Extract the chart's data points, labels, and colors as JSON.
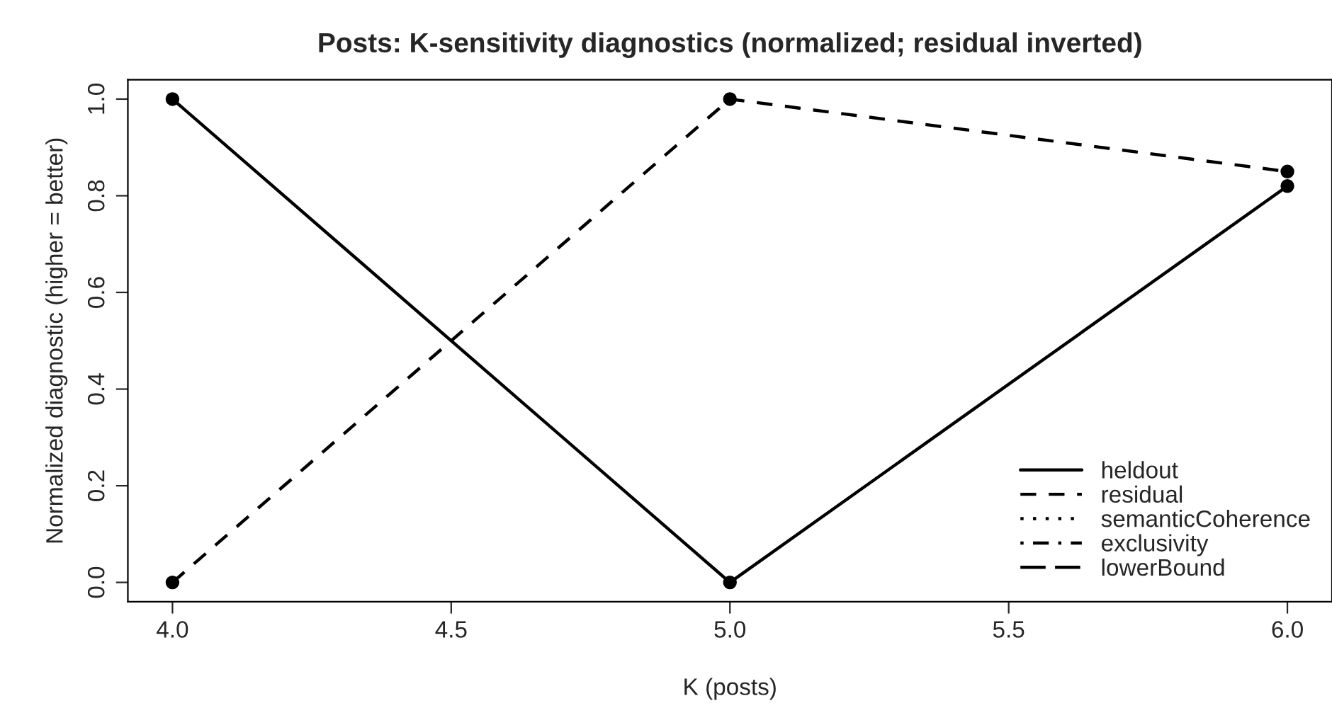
{
  "chart_data": {
    "type": "line",
    "title": "Posts: K-sensitivity diagnostics (normalized; residual inverted)",
    "xlabel": "K (posts)",
    "ylabel": "Normalized diagnostic (higher = better)",
    "x": [
      4,
      5,
      6
    ],
    "series": [
      {
        "name": "heldout",
        "color": "#000000",
        "line_style": "solid",
        "marker": "circle",
        "values": [
          1.0,
          0.0,
          0.82
        ]
      },
      {
        "name": "residual",
        "color": "#000000",
        "line_style": "dashed",
        "marker": "circle",
        "values": [
          0.0,
          1.0,
          0.85
        ]
      },
      {
        "name": "semanticCoherence",
        "color": "#000000",
        "line_style": "dotted",
        "marker": "circle",
        "values": [
          null,
          null,
          null
        ]
      },
      {
        "name": "exclusivity",
        "color": "#000000",
        "line_style": "dashdot",
        "marker": "circle",
        "values": [
          null,
          null,
          null
        ]
      },
      {
        "name": "lowerBound",
        "color": "#000000",
        "line_style": "longdash",
        "marker": "circle",
        "values": [
          null,
          null,
          null
        ]
      }
    ],
    "xlim": [
      3.92,
      6.08
    ],
    "xticks": [
      {
        "value": 4,
        "label": "4.0"
      },
      {
        "value": 4.5,
        "label": "4.5"
      },
      {
        "value": 5,
        "label": "5.0"
      },
      {
        "value": 5.5,
        "label": "5.5"
      },
      {
        "value": 6,
        "label": "6.0"
      }
    ],
    "ylim": [
      -0.04,
      1.04
    ],
    "yticks": [
      {
        "value": 0,
        "label": "0.0"
      },
      {
        "value": 0.2,
        "label": "0.2"
      },
      {
        "value": 0.4,
        "label": "0.4"
      },
      {
        "value": 0.6,
        "label": "0.6"
      },
      {
        "value": 0.8,
        "label": "0.8"
      },
      {
        "value": 1.0,
        "label": "1.0"
      }
    ],
    "grid": false,
    "legend": "bottom right"
  }
}
